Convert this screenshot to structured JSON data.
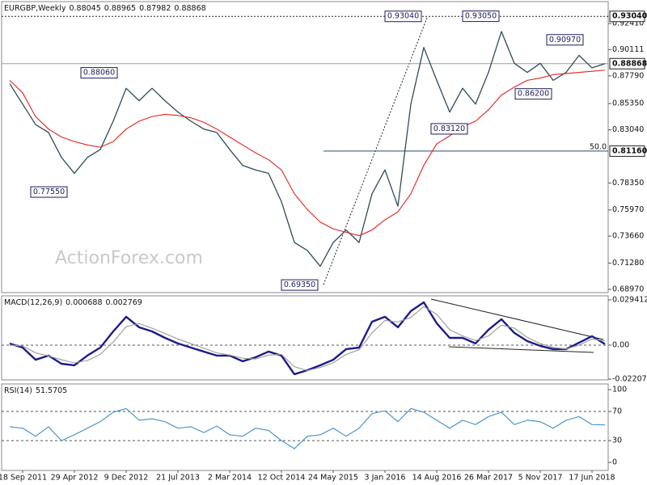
{
  "chart_data": [
    {
      "type": "line",
      "title": "EURGBP,Weekly",
      "info_values": [
        0.88045,
        0.88965,
        0.87982,
        0.88868
      ],
      "watermark": "ActionForex.com",
      "categories": [
        null,
        "18 Sep 2011",
        null,
        null,
        null,
        "29 Apr 2012",
        null,
        null,
        null,
        "9 Dec 2012",
        null,
        null,
        null,
        "21 Jul 2013",
        null,
        null,
        null,
        "2 Mar 2014",
        null,
        null,
        null,
        "12 Oct 2014",
        null,
        null,
        null,
        "24 May 2015",
        null,
        null,
        null,
        "3 Jan 2016",
        null,
        null,
        null,
        "14 Aug 2016",
        null,
        null,
        null,
        "26 Mar 2017",
        null,
        null,
        null,
        "5 Nov 2017",
        null,
        null,
        null,
        "17 Jun 2018",
        null
      ],
      "series": [
        {
          "color": "#2f4b5a",
          "values": [
            0.871,
            0.853,
            0.835,
            0.828,
            0.806,
            0.792,
            0.806,
            0.813,
            0.838,
            0.867,
            0.856,
            0.867,
            0.856,
            0.846,
            0.838,
            0.831,
            0.828,
            0.813,
            0.799,
            0.795,
            0.792,
            0.767,
            0.731,
            0.724,
            0.71,
            0.731,
            0.742,
            0.731,
            0.774,
            0.795,
            0.763,
            0.853,
            0.903,
            0.874,
            0.846,
            0.867,
            0.853,
            0.881,
            0.917,
            0.889,
            0.881,
            0.889,
            0.874,
            0.881,
            0.896,
            0.885,
            0.88868
          ]
        },
        {
          "color": "#e2231a",
          "values": [
            0.874,
            0.863,
            0.842,
            0.831,
            0.824,
            0.82,
            0.817,
            0.815,
            0.82,
            0.831,
            0.838,
            0.842,
            0.844,
            0.843,
            0.841,
            0.837,
            0.831,
            0.824,
            0.817,
            0.81,
            0.804,
            0.795,
            0.774,
            0.76,
            0.749,
            0.743,
            0.74,
            0.737,
            0.742,
            0.751,
            0.758,
            0.774,
            0.799,
            0.818,
            0.825,
            0.833,
            0.838,
            0.848,
            0.861,
            0.868,
            0.874,
            0.876,
            0.879,
            0.88,
            0.881,
            0.882,
            0.883
          ]
        }
      ],
      "ylim": [
        0.6868,
        0.9434
      ],
      "yticks": [
        {
          "value": 0.6897,
          "label": "0.68970"
        },
        {
          "value": 0.7128,
          "label": "0.71280"
        },
        {
          "value": 0.7366,
          "label": "0.73660"
        },
        {
          "value": 0.7597,
          "label": "0.75970"
        },
        {
          "value": 0.7835,
          "label": "0.78350"
        },
        {
          "value": 0.8304,
          "label": "0.83040"
        },
        {
          "value": 0.8535,
          "label": "0.85350"
        },
        {
          "value": 0.8779,
          "label": "0.87790"
        },
        {
          "value": 0.90111,
          "label": "0.90111"
        },
        {
          "value": 0.9241,
          "label": "0.92410"
        }
      ],
      "levels": [
        {
          "value": 0.9304,
          "label": "0.93040",
          "style": "dashed"
        },
        {
          "value": 0.88868,
          "label": "0.88868",
          "style": "current"
        },
        {
          "value": 0.8116,
          "label": "0.81160",
          "style": "fib",
          "fib": "50.0"
        }
      ],
      "annotations": [
        {
          "value": 0.8806,
          "label": "0.88060"
        },
        {
          "value": 0.7755,
          "label": "0.77550"
        },
        {
          "value": 0.6935,
          "label": "0.69350"
        },
        {
          "value": 0.9304,
          "label": "0.93040"
        },
        {
          "value": 0.9305,
          "label": "0.93050"
        },
        {
          "value": 0.9097,
          "label": "0.90970"
        },
        {
          "value": 0.862,
          "label": "0.86200"
        },
        {
          "value": 0.8312,
          "label": "0.83120"
        }
      ]
    },
    {
      "type": "line",
      "title": "MACD(12,26,9)",
      "info_values": [
        0.000688,
        0.002769
      ],
      "series": [
        {
          "color": "#1c1c8a",
          "values": [
            0.001,
            -0.0016,
            -0.0095,
            -0.0068,
            -0.0121,
            -0.0131,
            -0.0068,
            -0.0016,
            0.0089,
            0.0184,
            0.0116,
            0.0089,
            0.0047,
            0.0011,
            -0.0016,
            -0.0042,
            -0.0068,
            -0.0068,
            -0.0105,
            -0.0079,
            -0.0042,
            -0.0068,
            -0.0189,
            -0.0163,
            -0.0131,
            -0.0095,
            -0.0026,
            -0.0016,
            0.0152,
            0.0184,
            0.0116,
            0.0221,
            0.0278,
            0.0142,
            0.0047,
            0.0047,
            0.0011,
            0.01,
            0.0168,
            0.0079,
            0.0026,
            -0.0005,
            -0.0026,
            -0.0026,
            0.0016,
            0.0058,
            0.000688
          ]
        },
        {
          "color": "#9a9a9a",
          "values": [
            0,
            -0.0005,
            -0.005,
            -0.007,
            -0.0095,
            -0.0115,
            -0.01,
            -0.006,
            0.002,
            0.012,
            0.014,
            0.011,
            0.0075,
            0.004,
            0.001,
            -0.002,
            -0.005,
            -0.0065,
            -0.0085,
            -0.009,
            -0.0065,
            -0.006,
            -0.014,
            -0.0165,
            -0.0145,
            -0.0115,
            -0.006,
            -0.003,
            0.008,
            0.016,
            0.015,
            0.018,
            0.025,
            0.02,
            0.01,
            0.006,
            0.003,
            0.006,
            0.013,
            0.011,
            0.005,
            0.001,
            -0.0015,
            -0.0025,
            0,
            0.004,
            0.002769
          ]
        }
      ],
      "ylim": [
        -0.0226,
        0.032
      ],
      "yticks": [
        -0.022074,
        {
          "value": 0,
          "label": "0.00"
        },
        0.029412
      ],
      "levels": [
        0
      ]
    },
    {
      "type": "line",
      "title": "RSI(14)",
      "info_values": [
        51.5705
      ],
      "series": [
        {
          "color": "#3d8fc7",
          "values": [
            49,
            47,
            36,
            49,
            30,
            38,
            47,
            56,
            69,
            74,
            58,
            60,
            56,
            47,
            49,
            41,
            50,
            38,
            36,
            47,
            44,
            30,
            19,
            36,
            38,
            47,
            36,
            47,
            67,
            71,
            56,
            74,
            69,
            58,
            47,
            58,
            52,
            63,
            69,
            52,
            58,
            56,
            47,
            58,
            63,
            52,
            51.5705
          ]
        }
      ],
      "ylim": [
        -11,
        107.8
      ],
      "yticks": [
        0,
        30,
        70,
        100
      ],
      "levels": [
        30,
        70
      ]
    }
  ]
}
